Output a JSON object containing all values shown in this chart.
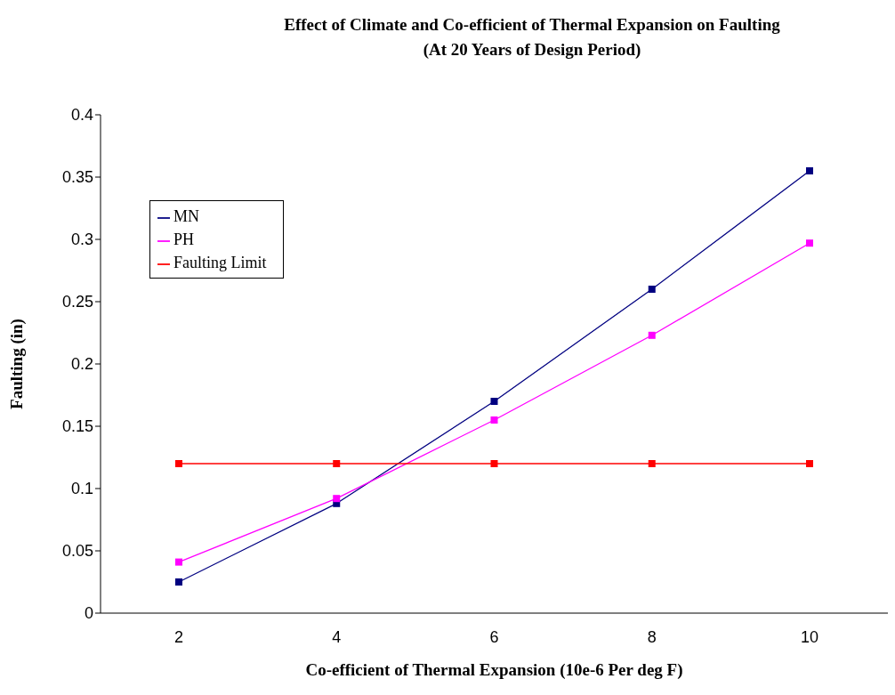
{
  "chart_data": {
    "type": "line",
    "title": "Effect of Climate and Co-efficient of Thermal Expansion on Faulting",
    "subtitle": "(At 20 Years of Design Period)",
    "xlabel": "Co-efficient of Thermal Expansion (10e-6 Per deg F)",
    "ylabel": "Faulting (in)",
    "categories": [
      "2",
      "4",
      "6",
      "8",
      "10"
    ],
    "series": [
      {
        "name": "MN",
        "color": "#000080",
        "values": [
          0.025,
          0.088,
          0.17,
          0.26,
          0.355
        ]
      },
      {
        "name": "PH",
        "color": "#ff00ff",
        "values": [
          0.041,
          0.092,
          0.155,
          0.223,
          0.297
        ]
      },
      {
        "name": "Faulting Limit",
        "color": "#ff0000",
        "values": [
          0.12,
          0.12,
          0.12,
          0.12,
          0.12
        ]
      }
    ],
    "ylim": [
      0,
      0.4
    ],
    "yticks": [
      0,
      0.05,
      0.1,
      0.15,
      0.2,
      0.25,
      0.3,
      0.35,
      0.4
    ],
    "grid": false,
    "legend": "top left",
    "marker": "square",
    "line_style": "solid"
  }
}
